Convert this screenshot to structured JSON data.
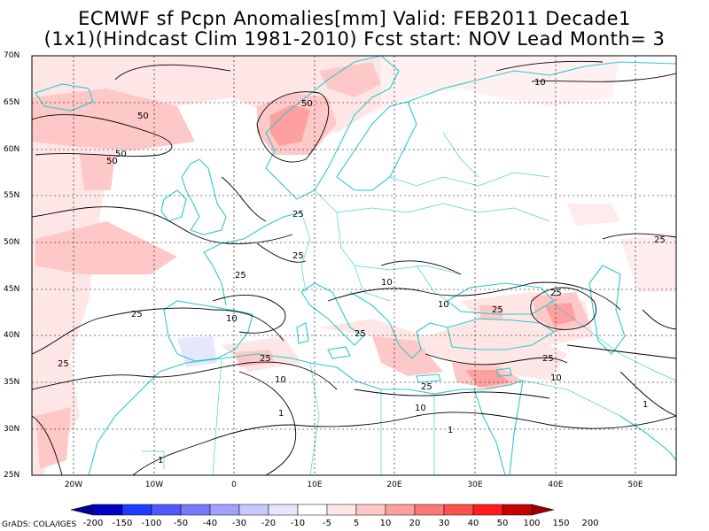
{
  "title": {
    "line1": "ECMWF sf Pcpn Anomalies[mm] Valid: FEB2011 Decade1",
    "line2": "(1x1)(Hindcast Clim 1981-2010) Fcst start: NOV  Lead Month= 3"
  },
  "credit": "GrADS: COLA/IGES",
  "map": {
    "lat_labels": [
      "70N",
      "65N",
      "60N",
      "55N",
      "50N",
      "45N",
      "40N",
      "35N",
      "30N",
      "25N"
    ],
    "lon_labels": [
      "20W",
      "10W",
      "0",
      "10E",
      "20E",
      "30E",
      "40E",
      "50E"
    ],
    "contour_labels": [
      "10",
      "50",
      "50",
      "50",
      "50",
      "25",
      "25",
      "25",
      "25",
      "10",
      "25",
      "25",
      "10",
      "25",
      "10",
      "25",
      "25",
      "10",
      "1",
      "1",
      "10",
      "1",
      "1",
      "10",
      "25",
      "25",
      "25"
    ],
    "colors": {
      "coast": "#2fc8c8",
      "contour": "#000000",
      "frame": "#000000"
    }
  },
  "colorbar": {
    "labels": [
      "-200",
      "-150",
      "-100",
      "-50",
      "-40",
      "-30",
      "-20",
      "-10",
      "-5",
      "5",
      "10",
      "20",
      "30",
      "40",
      "50",
      "100",
      "150",
      "200"
    ],
    "colors": [
      "#000096",
      "#0000c8",
      "#1e3cff",
      "#505aff",
      "#7878ff",
      "#a0a0ff",
      "#c8c8ff",
      "#e6e6ff",
      "#ffffff",
      "#ffe6e6",
      "#ffc8c8",
      "#ffa0a0",
      "#ff7878",
      "#ff5050",
      "#ff1e1e",
      "#c80000",
      "#960000"
    ]
  }
}
